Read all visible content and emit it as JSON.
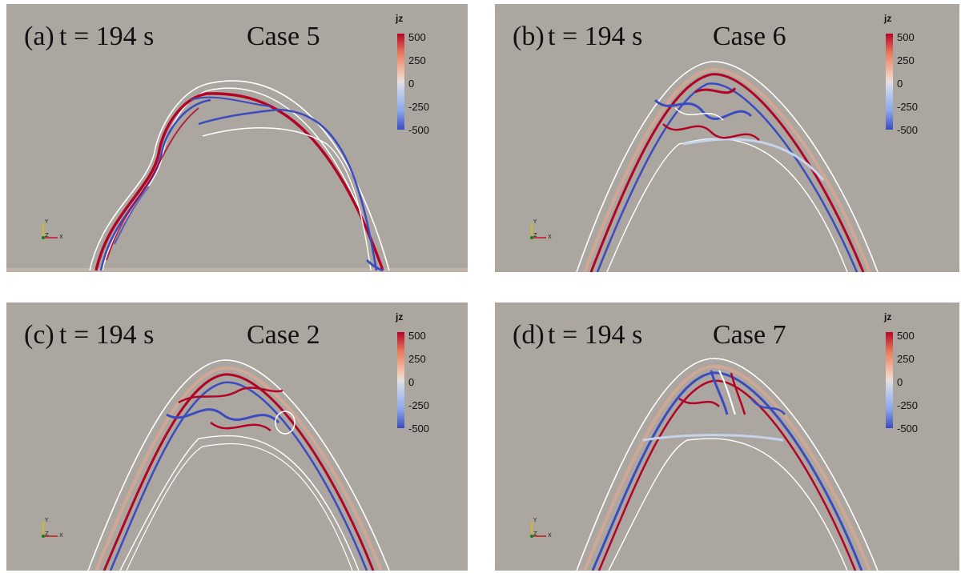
{
  "panels": [
    {
      "label": "(a)",
      "time": "t = 194 s",
      "case": "Case 5"
    },
    {
      "label": "(b)",
      "time": "t = 194 s",
      "case": "Case 6"
    },
    {
      "label": "(c)",
      "time": "t = 194 s",
      "case": "Case 2"
    },
    {
      "label": "(d)",
      "time": "t = 194 s",
      "case": "Case 7"
    }
  ],
  "colorbar": {
    "title": "jz",
    "ticks": [
      "500",
      "250",
      "0",
      "-250",
      "-500"
    ],
    "colors": [
      "#b40426",
      "#e6e0dc",
      "#3b4cc0"
    ]
  },
  "axes": {
    "x": "X",
    "y": "Y",
    "z": "Z"
  },
  "colors": {
    "background": "#aca6a0",
    "fieldline": "#ffffff",
    "positive": "#b40426",
    "negative": "#3b4cc0"
  }
}
